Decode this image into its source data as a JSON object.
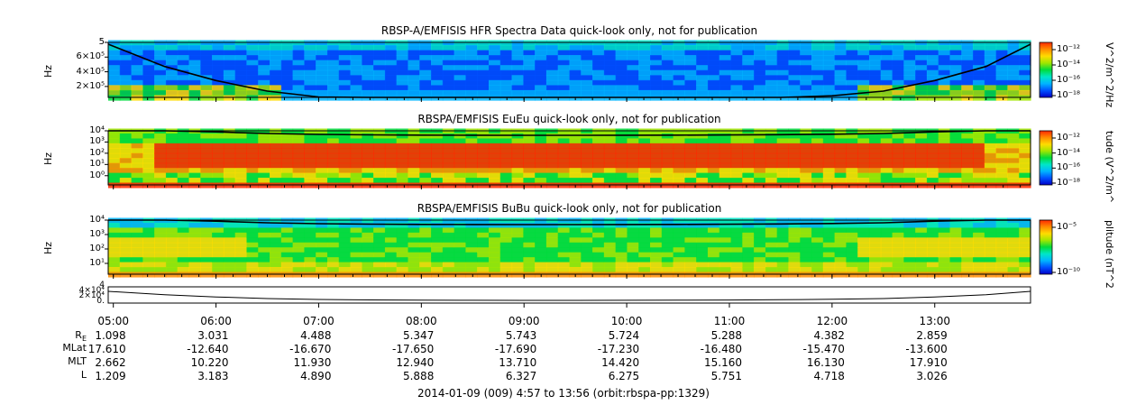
{
  "panels": [
    {
      "title": "RBSP-A/EMFISIS  HFR Spectra Data quick-look only, not for publication",
      "ylabel": "Hz",
      "yticks": [
        "5",
        "6×10⁵",
        "4×10⁵",
        "2×10⁵"
      ],
      "colorbar_label": "V^2/m^2/Hz",
      "colorbar_ticks": [
        "10⁻¹²",
        "10⁻¹⁴",
        "10⁻¹⁶",
        "10⁻¹⁸"
      ]
    },
    {
      "title": "RBSPA/EMFISIS  EuEu quick-look only, not for publication",
      "ylabel": "Hz",
      "yticks": [
        "10⁴",
        "10³",
        "10²",
        "10¹",
        "10⁰"
      ],
      "colorbar_label": "tude (V^2/m^",
      "colorbar_ticks": [
        "10⁻¹²",
        "10⁻¹⁴",
        "10⁻¹⁶",
        "10⁻¹⁸"
      ]
    },
    {
      "title": "RBSPA/EMFISIS  BuBu quick-look only, not for publication",
      "ylabel": "Hz",
      "yticks": [
        "10⁴",
        "10³",
        "10²",
        "10¹"
      ],
      "colorbar_label": "plitude (nT^2",
      "colorbar_ticks": [
        "10⁻⁵",
        "10⁻¹⁰"
      ]
    },
    {
      "yticks": [
        "4",
        "4×10⁴",
        "2×10⁴",
        "0."
      ]
    }
  ],
  "ephemeris": {
    "row_labels": [
      "R",
      "MLat",
      "MLT",
      "L"
    ],
    "rows": [
      [
        "1.098",
        "3.031",
        "4.488",
        "5.347",
        "5.743",
        "5.724",
        "5.288",
        "4.382",
        "2.859"
      ],
      [
        "17.610",
        "-12.640",
        "-16.670",
        "-17.650",
        "-17.690",
        "-17.230",
        "-16.480",
        "-15.470",
        "-13.600"
      ],
      [
        "2.662",
        "10.220",
        "11.930",
        "12.940",
        "13.710",
        "14.420",
        "15.160",
        "16.130",
        "17.910"
      ],
      [
        "1.209",
        "3.183",
        "4.890",
        "5.888",
        "6.327",
        "6.275",
        "5.751",
        "4.718",
        "3.026"
      ]
    ]
  },
  "footer": "2014-01-09 (009) 4:57 to 13:56 (orbit:rbspa-pp:1329)",
  "colors": {
    "spectrum": [
      "#0000c8",
      "#0050ff",
      "#00b4ff",
      "#00e6c8",
      "#00dc3c",
      "#a0e600",
      "#ffdc00",
      "#ff8c00",
      "#ff2800"
    ]
  },
  "chart_data": {
    "type": "heatmap",
    "x_start": "04:57",
    "x_end": "13:56",
    "x_ticks": [
      "05:00",
      "06:00",
      "07:00",
      "08:00",
      "09:00",
      "10:00",
      "11:00",
      "12:00",
      "13:00"
    ],
    "x_tick_hours": [
      5,
      6,
      7,
      8,
      9,
      10,
      11,
      12,
      13
    ],
    "x_range_hours": [
      4.95,
      13.933
    ],
    "panel_titles": [
      "RBSP-A/EMFISIS  HFR Spectra Data quick-look only, not for publication",
      "RBSPA/EMFISIS  EuEu quick-look only, not for publication",
      "RBSPA/EMFISIS  BuBu quick-look only, not for publication"
    ],
    "overlay_curve_L": {
      "hours": [
        4.95,
        5.5,
        6.0,
        6.5,
        7.0,
        7.5,
        8.0,
        8.5,
        9.0,
        9.5,
        10.0,
        10.5,
        11.0,
        11.5,
        12.0,
        12.5,
        13.0,
        13.5,
        13.933
      ],
      "relative_level": [
        1.0,
        0.62,
        0.38,
        0.2,
        0.1,
        0.05,
        0.02,
        0.01,
        0.0,
        0.0,
        0.01,
        0.02,
        0.04,
        0.07,
        0.12,
        0.2,
        0.38,
        0.62,
        1.0
      ]
    }
  }
}
